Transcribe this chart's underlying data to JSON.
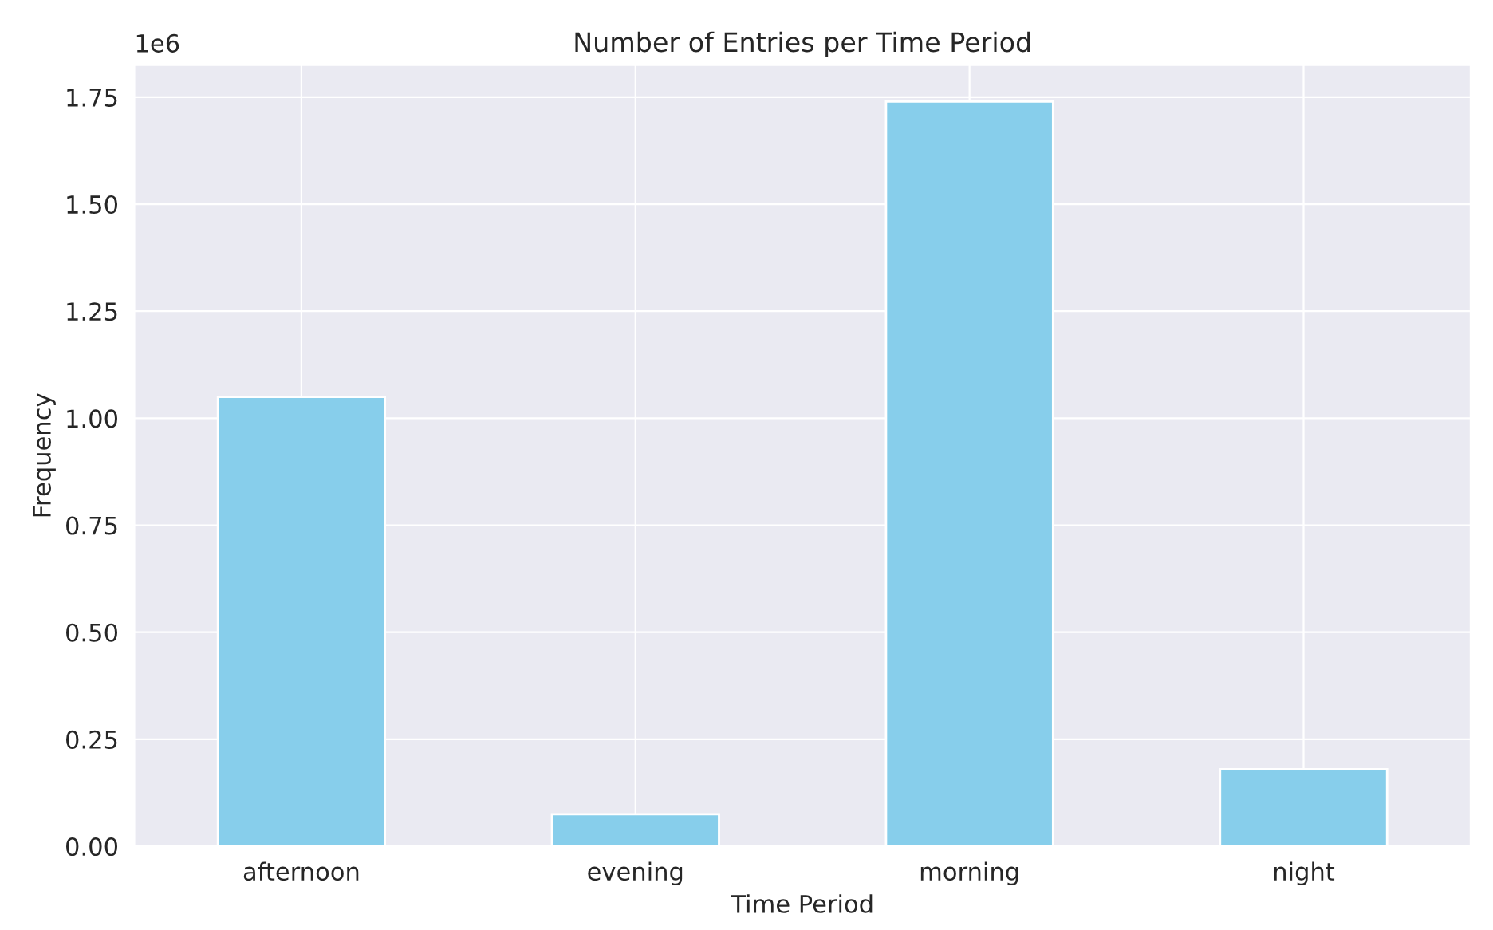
{
  "chart_data": {
    "type": "bar",
    "title": "Number of Entries per Time Period",
    "xlabel": "Time Period",
    "ylabel": "Frequency",
    "categories": [
      "afternoon",
      "evening",
      "morning",
      "night"
    ],
    "values": [
      1.05,
      0.075,
      1.74,
      0.18
    ],
    "color": "#87ceeb",
    "ylim": [
      0,
      1.825
    ],
    "yticks": [
      {
        "value": 0,
        "label": "0.00"
      },
      {
        "value": 0.25,
        "label": "0.25"
      },
      {
        "value": 0.5,
        "label": "0.50"
      },
      {
        "value": 0.75,
        "label": "0.75"
      },
      {
        "value": 1,
        "label": "1.00"
      },
      {
        "value": 1.25,
        "label": "1.25"
      },
      {
        "value": 1.5,
        "label": "1.50"
      },
      {
        "value": 1.75,
        "label": "1.75"
      }
    ],
    "annotations": [
      "1e6"
    ],
    "grid": true
  }
}
